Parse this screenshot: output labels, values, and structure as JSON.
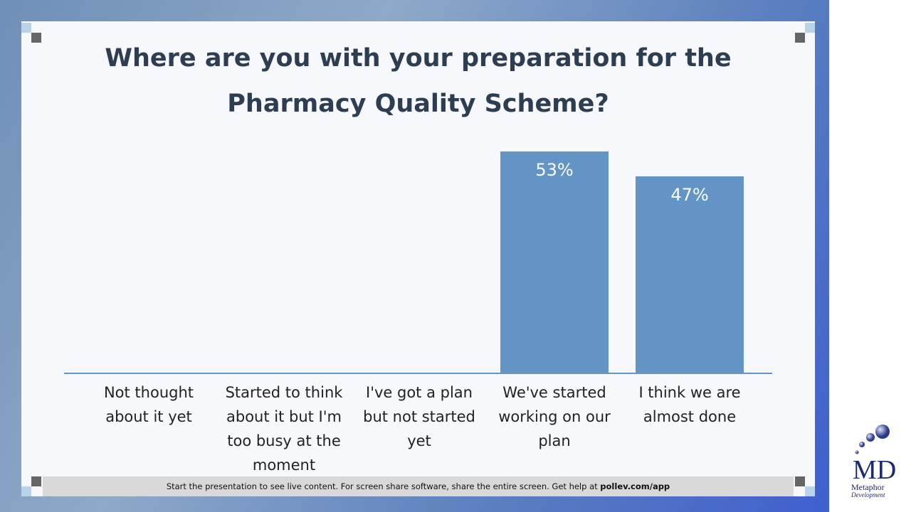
{
  "chart_data": {
    "type": "bar",
    "title": "Where are you with your preparation for the Pharmacy Quality Scheme?",
    "categories": [
      "Not thought about it yet",
      "Started to think about it but I'm too busy at the moment",
      "I've got a plan but not started yet",
      "We've started working on our plan",
      "I think we are almost done"
    ],
    "values": [
      0,
      0,
      0,
      53,
      47
    ],
    "value_labels": [
      null,
      null,
      null,
      "53%",
      "47%"
    ],
    "color": "#6295c6"
  },
  "footer": {
    "text": "Start the presentation to see live content. For screen share software, share the entire screen. Get help at",
    "link": "pollev.com/app"
  },
  "logo": {
    "mark": "MD",
    "line1": "Metaphor",
    "line2": "Development"
  }
}
